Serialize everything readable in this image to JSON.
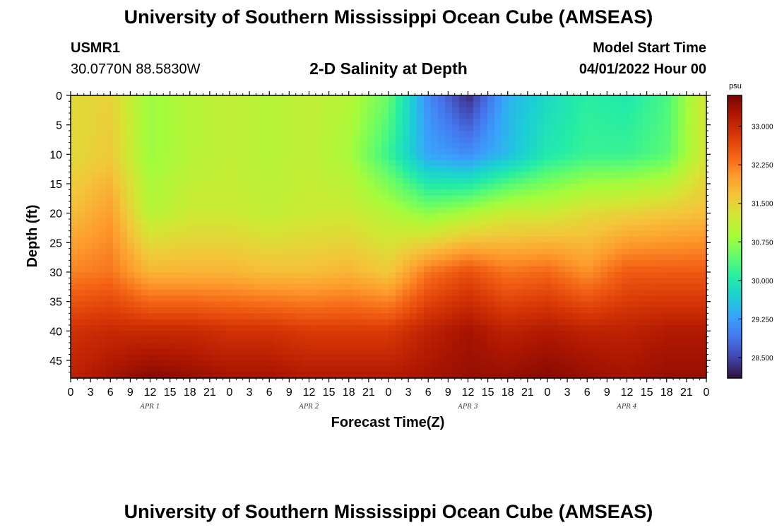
{
  "header": {
    "title": "University of Southern Mississippi Ocean Cube (AMSEAS)",
    "station_id": "USMR1",
    "coords": "30.0770N  88.5830W",
    "plot_title": "2-D Salinity at Depth",
    "model_start_label": "Model Start Time",
    "model_start_value": "04/01/2022 Hour 00"
  },
  "footer": {
    "title": "University of Southern Mississippi Ocean Cube (AMSEAS)"
  },
  "colors": {
    "frame": "#000000",
    "colormap": [
      "#30123b",
      "#4145ab",
      "#4675ed",
      "#39a2fc",
      "#1bcfd4",
      "#24eca6",
      "#61fc6c",
      "#a4fc3b",
      "#d1e834",
      "#f3c63a",
      "#fe9b2d",
      "#f36315",
      "#d93806",
      "#b11901",
      "#7a0403"
    ]
  },
  "chart_data": {
    "type": "heatmap",
    "title": "2-D Salinity at Depth",
    "xlabel": "Forecast Time(Z)",
    "ylabel": "Depth (ft)",
    "x_hours_range": [
      0,
      96
    ],
    "x_tick_labels": [
      "0",
      "3",
      "6",
      "9",
      "12",
      "15",
      "18",
      "21",
      "0",
      "3",
      "6",
      "9",
      "12",
      "15",
      "18",
      "21",
      "0",
      "3",
      "6",
      "9",
      "12",
      "15",
      "18",
      "21",
      "0",
      "3",
      "6",
      "9",
      "12",
      "15",
      "18",
      "21",
      "0"
    ],
    "day_labels": [
      "APR 1",
      "APR 2",
      "APR 3",
      "APR 4"
    ],
    "ylim": [
      0,
      48
    ],
    "y_ticks": [
      0,
      5,
      10,
      15,
      20,
      25,
      30,
      35,
      40,
      45
    ],
    "colorbar": {
      "unit": "psu",
      "range": [
        28.1,
        33.6
      ],
      "ticks": [
        28.5,
        29.25,
        30.0,
        30.75,
        31.5,
        32.25,
        33.0
      ],
      "tick_labels": [
        "28.500",
        "29.250",
        "30.000",
        "30.750",
        "31.500",
        "32.250",
        "33.000"
      ]
    },
    "grid_hours": [
      0,
      6,
      12,
      18,
      24,
      30,
      36,
      42,
      48,
      54,
      60,
      66,
      72,
      78,
      84,
      90,
      96
    ],
    "grid_depths": [
      0,
      10,
      20,
      30,
      40,
      48
    ],
    "salinity": [
      [
        31.4,
        31.5,
        30.8,
        31.0,
        31.1,
        31.0,
        31.1,
        31.0,
        30.5,
        29.1,
        28.3,
        29.4,
        29.8,
        30.1,
        30.0,
        30.3,
        31.3
      ],
      [
        31.4,
        31.6,
        30.8,
        31.0,
        31.1,
        31.0,
        31.1,
        30.9,
        30.2,
        29.3,
        29.1,
        29.5,
        30.0,
        30.2,
        30.2,
        30.4,
        31.3
      ],
      [
        31.7,
        32.0,
        31.0,
        31.2,
        31.2,
        31.1,
        31.2,
        31.2,
        31.0,
        30.7,
        30.9,
        31.2,
        31.2,
        31.4,
        31.5,
        31.6,
        31.7
      ],
      [
        32.2,
        32.3,
        31.8,
        31.8,
        31.8,
        31.7,
        31.7,
        31.8,
        31.6,
        32.3,
        32.6,
        32.3,
        32.4,
        32.1,
        32.5,
        32.5,
        32.5
      ],
      [
        32.9,
        33.0,
        33.0,
        33.0,
        32.9,
        32.9,
        32.8,
        32.8,
        32.8,
        33.1,
        33.3,
        33.1,
        33.2,
        33.1,
        33.1,
        33.2,
        33.2
      ],
      [
        33.1,
        33.3,
        33.5,
        33.4,
        33.3,
        33.3,
        33.2,
        33.2,
        33.2,
        33.3,
        33.4,
        33.4,
        33.5,
        33.4,
        33.3,
        33.4,
        33.4
      ]
    ]
  }
}
